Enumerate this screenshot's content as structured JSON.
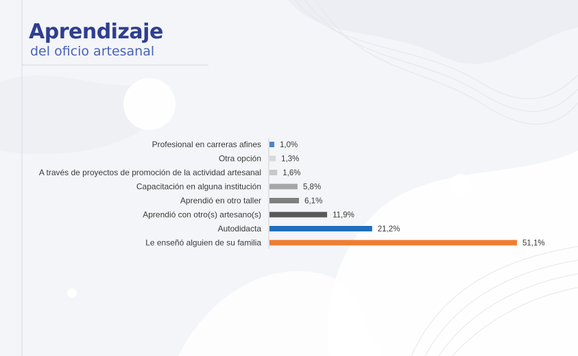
{
  "header": {
    "title": "Aprendizaje",
    "subtitle": "del oficio artesanal"
  },
  "chart_data": {
    "type": "bar",
    "orientation": "horizontal",
    "categories": [
      "Profesional en carreras afines",
      "Otra opción",
      "A través de proyectos de promoción de la actividad artesanal",
      "Capacitación en alguna institución",
      "Aprendió en otro taller",
      "Aprendió con otro(s) artesano(s)",
      "Autodidacta",
      "Le enseñó alguien de su familia"
    ],
    "values": [
      1.0,
      1.3,
      1.6,
      5.8,
      6.1,
      11.9,
      21.2,
      51.1
    ],
    "value_labels": [
      "1,0%",
      "1,3%",
      "1,6%",
      "5,8%",
      "6,1%",
      "11,9%",
      "21,2%",
      "51,1%"
    ],
    "colors": [
      "#4a86c8",
      "#d9d9d9",
      "#c8c8c8",
      "#a6a6a6",
      "#7f7f7f",
      "#595959",
      "#1f6fbd",
      "#ef7d31"
    ],
    "xlim": [
      0,
      51.1
    ],
    "grid": false,
    "legend": "none"
  }
}
